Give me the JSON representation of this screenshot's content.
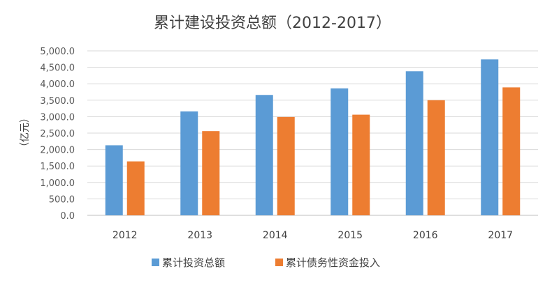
{
  "chart_data": {
    "type": "bar",
    "title": "累计建设投资总额（2012-2017）",
    "ylabel": "（亿元）",
    "xlabel": "",
    "categories": [
      "2012",
      "2013",
      "2014",
      "2015",
      "2016",
      "2017"
    ],
    "series": [
      {
        "name": "累计投资总额",
        "color": "#5B9BD5",
        "values": [
          2130,
          3160,
          3660,
          3860,
          4380,
          4740
        ]
      },
      {
        "name": "累计债务性资金投入",
        "color": "#ED7D31",
        "values": [
          1640,
          2560,
          2990,
          3060,
          3500,
          3890
        ]
      }
    ],
    "ylim": [
      0,
      5000
    ],
    "yticks": [
      "0.0",
      "500.0",
      "1,000.0",
      "1,500.0",
      "2,000.0",
      "2,500.0",
      "3,000.0",
      "3,500.0",
      "4,000.0",
      "4,500.0",
      "5,000.0"
    ],
    "grid": true,
    "legend_position": "bottom"
  }
}
